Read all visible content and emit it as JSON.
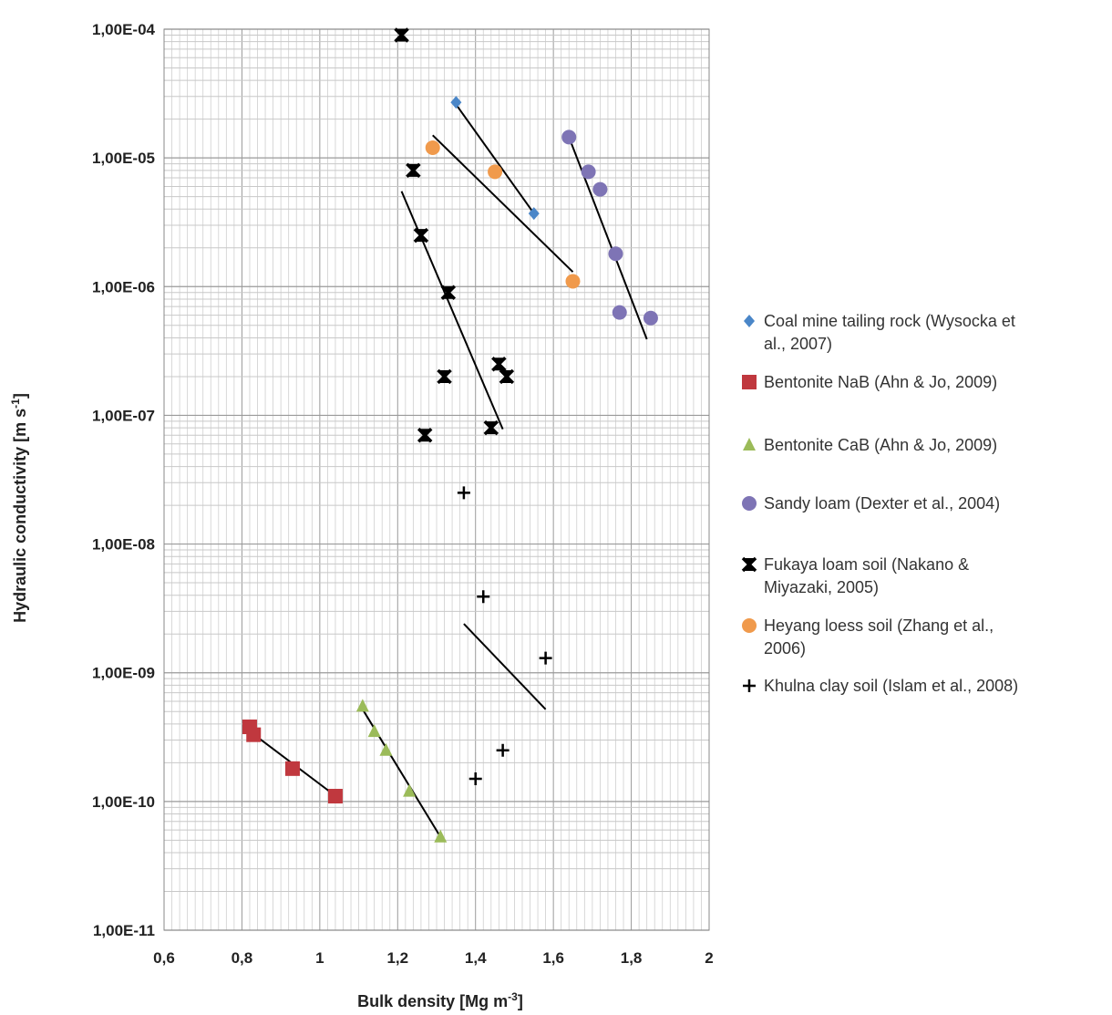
{
  "chart_data": {
    "type": "scatter",
    "xlabel": "Bulk density [Mg m",
    "xlabel_sup": "-3",
    "xlabel_end": "]",
    "ylabel": "Hydraulic conductivity [m s",
    "ylabel_sup": "-1",
    "ylabel_end": "]",
    "x_scale": "linear",
    "y_scale": "log",
    "xlim": [
      0.6,
      2
    ],
    "ylim": [
      1e-11,
      0.0001
    ],
    "x_tick_labels": [
      "0,6",
      "0,8",
      "1",
      "1,2",
      "1,4",
      "1,6",
      "1,8",
      "2"
    ],
    "y_tick_labels": [
      "1,00E-11",
      "1,00E-10",
      "1,00E-09",
      "1,00E-08",
      "1,00E-07",
      "1,00E-06",
      "1,00E-05",
      "1,00E-04"
    ],
    "grid": true,
    "legend_position": "right",
    "series": [
      {
        "name_lines": [
          "Coal mine tailing rock (Wysocka et",
          "al., 2007)"
        ],
        "marker": "diamond",
        "color": "#4a86c8",
        "points": [
          [
            1.35,
            2.7e-05
          ],
          [
            1.55,
            3.7e-06
          ]
        ],
        "trend": [
          [
            1.35,
            2.6e-05
          ],
          [
            1.55,
            3.7e-06
          ]
        ]
      },
      {
        "name_lines": [
          "Bentonite NaB (Ahn & Jo, 2009)"
        ],
        "marker": "square",
        "color": "#c0383e",
        "points": [
          [
            0.82,
            3.8e-10
          ],
          [
            0.83,
            3.3e-10
          ],
          [
            0.93,
            1.8e-10
          ],
          [
            1.04,
            1.1e-10
          ]
        ],
        "trend": [
          [
            0.81,
            3.7e-10
          ],
          [
            1.05,
            1.05e-10
          ]
        ]
      },
      {
        "name_lines": [
          "Bentonite CaB (Ahn & Jo, 2009)"
        ],
        "marker": "triangle",
        "color": "#9bbb59",
        "points": [
          [
            1.11,
            5.5e-10
          ],
          [
            1.14,
            3.5e-10
          ],
          [
            1.17,
            2.5e-10
          ],
          [
            1.23,
            1.2e-10
          ],
          [
            1.31,
            5.3e-11
          ]
        ],
        "trend": [
          [
            1.11,
            5.2e-10
          ],
          [
            1.31,
            5.3e-11
          ]
        ]
      },
      {
        "name_lines": [
          "Sandy loam (Dexter et al., 2004)"
        ],
        "marker": "circle",
        "color": "#7e74b5",
        "points": [
          [
            1.64,
            1.45e-05
          ],
          [
            1.69,
            7.8e-06
          ],
          [
            1.72,
            5.7e-06
          ],
          [
            1.76,
            1.8e-06
          ],
          [
            1.77,
            6.3e-07
          ],
          [
            1.85,
            5.7e-07
          ]
        ],
        "trend": [
          [
            1.64,
            1.45e-05
          ],
          [
            1.84,
            3.9e-07
          ]
        ]
      },
      {
        "name_lines": [
          "Fukaya loam soil (Nakano &",
          "Miyazaki, 2005)"
        ],
        "marker": "hourglass",
        "color": "#000000",
        "points": [
          [
            1.21,
            9e-05
          ],
          [
            1.24,
            8e-06
          ],
          [
            1.26,
            2.5e-06
          ],
          [
            1.33,
            9e-07
          ],
          [
            1.32,
            2e-07
          ],
          [
            1.46,
            2.5e-07
          ],
          [
            1.48,
            2e-07
          ],
          [
            1.27,
            7e-08
          ],
          [
            1.44,
            8e-08
          ]
        ],
        "trend": [
          [
            1.21,
            5.5e-06
          ],
          [
            1.47,
            7.8e-08
          ]
        ]
      },
      {
        "name_lines": [
          "Heyang loess soil (Zhang et al.,",
          "2006)"
        ],
        "marker": "circle",
        "color": "#f09a4c",
        "points": [
          [
            1.29,
            1.2e-05
          ],
          [
            1.45,
            7.8e-06
          ],
          [
            1.65,
            1.1e-06
          ]
        ],
        "trend": [
          [
            1.29,
            1.5e-05
          ],
          [
            1.65,
            1.3e-06
          ]
        ]
      },
      {
        "name_lines": [
          "Khulna clay soil (Islam et al., 2008)"
        ],
        "marker": "plus",
        "color": "#000000",
        "points": [
          [
            1.37,
            2.5e-08
          ],
          [
            1.42,
            3.9e-09
          ],
          [
            1.58,
            1.3e-09
          ],
          [
            1.47,
            2.5e-10
          ],
          [
            1.4,
            1.5e-10
          ]
        ],
        "trend": [
          [
            1.37,
            2.4e-09
          ],
          [
            1.58,
            5.2e-10
          ]
        ]
      }
    ]
  }
}
